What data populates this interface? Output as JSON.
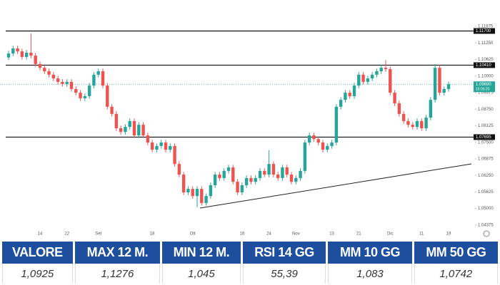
{
  "chart_data": {
    "type": "candlestick",
    "categories": [
      null,
      null,
      null,
      null,
      null,
      null,
      null,
      "14",
      null,
      null,
      null,
      null,
      null,
      "22",
      null,
      null,
      null,
      null,
      null,
      null,
      "Set",
      null,
      null,
      null,
      null,
      null,
      null,
      null,
      null,
      null,
      null,
      null,
      "18",
      null,
      null,
      null,
      null,
      null,
      null,
      null,
      null,
      "Ott",
      null,
      null,
      null,
      null,
      null,
      null,
      null,
      null,
      null,
      null,
      "16",
      null,
      null,
      null,
      null,
      null,
      "24",
      null,
      null,
      null,
      null,
      null,
      "Nov",
      null,
      null,
      null,
      null,
      null,
      null,
      null,
      "13",
      null,
      null,
      null,
      null,
      null,
      "21",
      null,
      null,
      null,
      null,
      null,
      null,
      "Dic",
      null,
      null,
      null,
      null,
      null,
      null,
      "11",
      null,
      null,
      null,
      null,
      null,
      "19"
    ],
    "open": [
      1.107,
      1.1085,
      1.1104,
      1.1093,
      1.1072,
      1.1088,
      1.1077,
      1.1045,
      1.1031,
      1.1018,
      1.1005,
      1.0991,
      1.0978,
      1.097,
      1.0978,
      1.0951,
      1.0937,
      1.0916,
      1.0924,
      1.0964,
      1.1005,
      1.1018,
      1.0964,
      1.0884,
      1.0857,
      1.0803,
      1.0789,
      1.0808,
      1.083,
      1.0776,
      1.0816,
      1.0776,
      1.0749,
      1.0722,
      1.0736,
      1.0749,
      1.0722,
      1.0736,
      1.0668,
      1.0628,
      1.0561,
      1.0574,
      1.0547,
      1.0574,
      1.0521,
      1.0547,
      1.0588,
      1.0628,
      1.0615,
      1.0642,
      1.0655,
      1.0601,
      1.0561,
      1.0588,
      1.0615,
      1.0601,
      1.0615,
      1.0642,
      1.0628,
      1.0668,
      1.0628,
      1.0615,
      1.0655,
      1.0628,
      1.0601,
      1.0615,
      1.0642,
      1.0749,
      1.0776,
      1.0762,
      1.0749,
      1.0722,
      1.0736,
      1.0749,
      1.0884,
      1.091,
      1.0937,
      1.0924,
      1.0964,
      1.1005,
      1.0978,
      1.0991,
      1.1005,
      1.1018,
      1.1031,
      1.1026,
      1.0937,
      1.0897,
      1.0857,
      1.083,
      1.0816,
      1.0808,
      1.083,
      1.0803,
      1.0843,
      1.091,
      1.1031,
      1.0937,
      1.0951
    ],
    "high": [
      1.1095,
      1.1114,
      1.1114,
      1.1103,
      1.1098,
      1.116,
      1.1087,
      1.1055,
      1.1041,
      1.1028,
      1.1015,
      1.1001,
      1.0988,
      1.0988,
      1.0988,
      1.0961,
      1.0947,
      1.0934,
      1.0974,
      1.1015,
      1.1028,
      1.1028,
      1.0974,
      1.0894,
      1.0867,
      1.0813,
      1.0818,
      1.084,
      1.084,
      1.0826,
      1.0826,
      1.0786,
      1.0759,
      1.0746,
      1.0759,
      1.0759,
      1.0746,
      1.0746,
      1.0678,
      1.0638,
      1.0584,
      1.0584,
      1.0584,
      1.0584,
      1.0557,
      1.0598,
      1.0638,
      1.0638,
      1.0652,
      1.0665,
      1.0665,
      1.0611,
      1.0598,
      1.0625,
      1.0625,
      1.0625,
      1.0652,
      1.0652,
      1.072,
      1.0678,
      1.0638,
      1.0665,
      1.0665,
      1.0638,
      1.0625,
      1.0652,
      1.0759,
      1.0786,
      1.0786,
      1.0772,
      1.0759,
      1.0746,
      1.0759,
      1.0894,
      1.092,
      1.0947,
      1.0947,
      1.0974,
      1.1015,
      1.1015,
      1.1001,
      1.1015,
      1.1028,
      1.1041,
      1.106,
      1.1036,
      1.0947,
      1.0907,
      1.0867,
      1.084,
      1.0826,
      1.084,
      1.084,
      1.0853,
      1.092,
      1.1045,
      1.1041,
      1.0961,
      1.0979
    ],
    "low": [
      1.106,
      1.1075,
      1.1083,
      1.1062,
      1.1062,
      1.1067,
      1.1035,
      1.1021,
      1.1008,
      1.0995,
      1.0981,
      1.0968,
      1.096,
      1.096,
      1.0941,
      1.0927,
      1.0906,
      1.0906,
      1.0914,
      1.0954,
      1.0995,
      1.0954,
      1.0874,
      1.0847,
      1.0793,
      1.0779,
      1.0779,
      1.0798,
      1.0766,
      1.0766,
      1.0766,
      1.0739,
      1.0712,
      1.0712,
      1.0726,
      1.0712,
      1.0712,
      1.0658,
      1.0618,
      1.0551,
      1.0551,
      1.0537,
      1.0505,
      1.0511,
      1.0511,
      1.0537,
      1.0578,
      1.0605,
      1.0605,
      1.0632,
      1.0591,
      1.0551,
      1.0551,
      1.0578,
      1.0591,
      1.0591,
      1.0605,
      1.0618,
      1.0618,
      1.0618,
      1.0605,
      1.0605,
      1.0618,
      1.0591,
      1.0591,
      1.0605,
      1.0632,
      1.0739,
      1.0752,
      1.0739,
      1.0712,
      1.0712,
      1.0726,
      1.0739,
      1.0874,
      1.09,
      1.0914,
      1.0914,
      1.0954,
      1.0968,
      1.0968,
      1.0981,
      1.0995,
      1.1008,
      1.1016,
      1.0927,
      1.0887,
      1.0847,
      1.082,
      1.0806,
      1.0798,
      1.0798,
      1.0793,
      1.0793,
      1.0833,
      1.09,
      1.0927,
      1.0927,
      1.0941
    ],
    "close": [
      1.1085,
      1.1104,
      1.1093,
      1.1072,
      1.1088,
      1.1077,
      1.1045,
      1.1031,
      1.1018,
      1.1005,
      1.0991,
      1.0978,
      1.097,
      1.0978,
      1.0951,
      1.0937,
      1.0916,
      1.0924,
      1.0964,
      1.1005,
      1.1018,
      1.0964,
      1.0884,
      1.0857,
      1.0803,
      1.0789,
      1.0808,
      1.083,
      1.0776,
      1.0816,
      1.0776,
      1.0749,
      1.0722,
      1.0736,
      1.0749,
      1.0722,
      1.0736,
      1.0668,
      1.0628,
      1.0561,
      1.0574,
      1.0547,
      1.0574,
      1.0521,
      1.0547,
      1.0588,
      1.0628,
      1.0615,
      1.0642,
      1.0655,
      1.0601,
      1.0561,
      1.0588,
      1.0615,
      1.0601,
      1.0615,
      1.0642,
      1.0628,
      1.0668,
      1.0628,
      1.0615,
      1.0655,
      1.0628,
      1.0601,
      1.0615,
      1.0642,
      1.0749,
      1.0776,
      1.0762,
      1.0749,
      1.0722,
      1.0736,
      1.0749,
      1.0884,
      1.091,
      1.0937,
      1.0924,
      1.0964,
      1.1005,
      1.0978,
      1.0991,
      1.1005,
      1.1018,
      1.1031,
      1.1026,
      1.0937,
      1.0897,
      1.0857,
      1.083,
      1.0816,
      1.0808,
      1.083,
      1.0803,
      1.0843,
      1.091,
      1.1031,
      1.0937,
      1.0951,
      1.0969
    ],
    "up_color": "#26a69a",
    "down_color": "#ef5350",
    "ylim": [
      1.0405,
      1.126
    ],
    "yticks": [
      1.11875,
      {
        "value": 1.1125,
        "label": "1.11250"
      },
      1.10625,
      {
        "value": 1.1,
        "label": "1.10000"
      },
      1.09375,
      {
        "value": 1.0875,
        "label": "1.08750"
      },
      1.08125,
      {
        "value": 1.075,
        "label": "1.07500"
      },
      1.06875,
      {
        "value": 1.0625,
        "label": "1.06250"
      },
      1.05625,
      {
        "value": 1.05,
        "label": "1.05000"
      },
      1.04375
    ],
    "grid": false,
    "levels": [
      {
        "value": 1.117,
        "label": "1.11700"
      },
      {
        "value": 1.1041,
        "label": "1.10410"
      },
      {
        "value": 1.07695,
        "label": "1.07695"
      }
    ],
    "last_price": {
      "value": 1.0969,
      "label": "1.09690",
      "countdown": "15:05:20"
    }
  },
  "table": {
    "headers": [
      "VALORE",
      "MAX 12 M.",
      "MIN 12 M.",
      "RSI 14 GG",
      "MM 10 GG",
      "MM 50 GG"
    ],
    "rows": [
      [
        "1,0925",
        "1,1276",
        "1,045",
        "55,39",
        "1,083",
        "1,0742"
      ]
    ]
  }
}
